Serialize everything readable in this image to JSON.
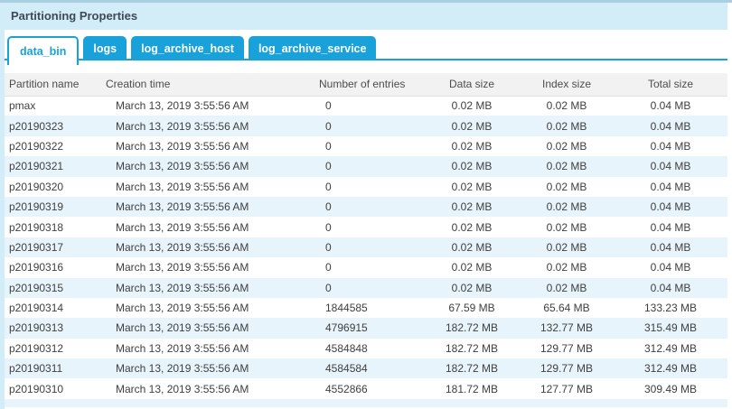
{
  "panel": {
    "title": "Partitioning Properties"
  },
  "tabs": {
    "active": "data_bin",
    "items": [
      {
        "label": "data_bin",
        "active": true
      },
      {
        "label": "logs",
        "active": false
      },
      {
        "label": "log_archive_host",
        "active": false
      },
      {
        "label": "log_archive_service",
        "active": false
      }
    ]
  },
  "table": {
    "columns": [
      "Partition name",
      "Creation time",
      "Number of entries",
      "Data size",
      "Index size",
      "Total size"
    ],
    "rows": [
      {
        "name": "pmax",
        "creation_time": "March 13, 2019 3:55:56 AM",
        "entries": "0",
        "data_size": "0.02 MB",
        "index_size": "0.02 MB",
        "total_size": "0.04 MB"
      },
      {
        "name": "p20190323",
        "creation_time": "March 13, 2019 3:55:56 AM",
        "entries": "0",
        "data_size": "0.02 MB",
        "index_size": "0.02 MB",
        "total_size": "0.04 MB"
      },
      {
        "name": "p20190322",
        "creation_time": "March 13, 2019 3:55:56 AM",
        "entries": "0",
        "data_size": "0.02 MB",
        "index_size": "0.02 MB",
        "total_size": "0.04 MB"
      },
      {
        "name": "p20190321",
        "creation_time": "March 13, 2019 3:55:56 AM",
        "entries": "0",
        "data_size": "0.02 MB",
        "index_size": "0.02 MB",
        "total_size": "0.04 MB"
      },
      {
        "name": "p20190320",
        "creation_time": "March 13, 2019 3:55:56 AM",
        "entries": "0",
        "data_size": "0.02 MB",
        "index_size": "0.02 MB",
        "total_size": "0.04 MB"
      },
      {
        "name": "p20190319",
        "creation_time": "March 13, 2019 3:55:56 AM",
        "entries": "0",
        "data_size": "0.02 MB",
        "index_size": "0.02 MB",
        "total_size": "0.04 MB"
      },
      {
        "name": "p20190318",
        "creation_time": "March 13, 2019 3:55:56 AM",
        "entries": "0",
        "data_size": "0.02 MB",
        "index_size": "0.02 MB",
        "total_size": "0.04 MB"
      },
      {
        "name": "p20190317",
        "creation_time": "March 13, 2019 3:55:56 AM",
        "entries": "0",
        "data_size": "0.02 MB",
        "index_size": "0.02 MB",
        "total_size": "0.04 MB"
      },
      {
        "name": "p20190316",
        "creation_time": "March 13, 2019 3:55:56 AM",
        "entries": "0",
        "data_size": "0.02 MB",
        "index_size": "0.02 MB",
        "total_size": "0.04 MB"
      },
      {
        "name": "p20190315",
        "creation_time": "March 13, 2019 3:55:56 AM",
        "entries": "0",
        "data_size": "0.02 MB",
        "index_size": "0.02 MB",
        "total_size": "0.04 MB"
      },
      {
        "name": "p20190314",
        "creation_time": "March 13, 2019 3:55:56 AM",
        "entries": "1844585",
        "data_size": "67.59 MB",
        "index_size": "65.64 MB",
        "total_size": "133.23 MB"
      },
      {
        "name": "p20190313",
        "creation_time": "March 13, 2019 3:55:56 AM",
        "entries": "4796915",
        "data_size": "182.72 MB",
        "index_size": "132.77 MB",
        "total_size": "315.49 MB"
      },
      {
        "name": "p20190312",
        "creation_time": "March 13, 2019 3:55:56 AM",
        "entries": "4584848",
        "data_size": "182.72 MB",
        "index_size": "129.77 MB",
        "total_size": "312.49 MB"
      },
      {
        "name": "p20190311",
        "creation_time": "March 13, 2019 3:55:56 AM",
        "entries": "4584584",
        "data_size": "182.72 MB",
        "index_size": "129.77 MB",
        "total_size": "312.49 MB"
      },
      {
        "name": "p20190310",
        "creation_time": "March 13, 2019 3:55:56 AM",
        "entries": "4552866",
        "data_size": "181.72 MB",
        "index_size": "127.77 MB",
        "total_size": "309.49 MB"
      }
    ]
  },
  "colors": {
    "accent": "#18a2d9",
    "titlebar_bg": "#d2ecf8",
    "top_border": "#aacfe0",
    "header_bg": "#f2f2f2",
    "row_stripe": "#e7f4fb"
  }
}
